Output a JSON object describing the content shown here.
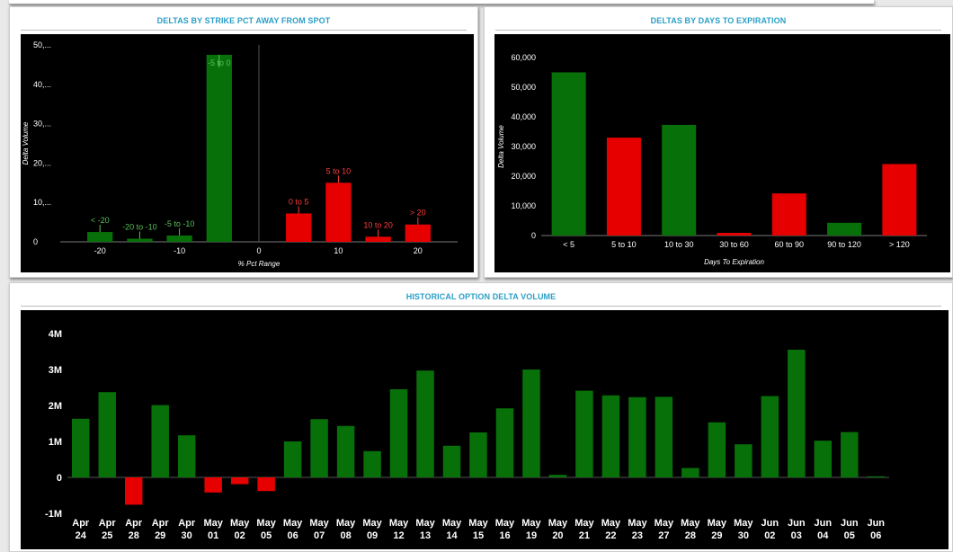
{
  "panels": {
    "strike": {
      "title": "DELTAS BY STRIKE PCT AWAY FROM SPOT"
    },
    "expiration": {
      "title": "DELTAS BY DAYS TO EXPIRATION"
    },
    "history": {
      "title": "HISTORICAL OPTION DELTA VOLUME"
    }
  },
  "colors": {
    "positive": "#087008",
    "negative": "#e60000",
    "background": "#000000",
    "axis_text": "#ffffff",
    "title": "#2b9fc7"
  },
  "chart_data": [
    {
      "id": "strike",
      "type": "bar",
      "xlabel": "% Pct Range",
      "ylabel": "Delta Volume",
      "xlim": [
        -25,
        25
      ],
      "ylim": [
        0,
        50000
      ],
      "xticks": [
        {
          "value": -20,
          "label": "-20"
        },
        {
          "value": -10,
          "label": "-10"
        },
        {
          "value": 0,
          "label": "0"
        },
        {
          "value": 10,
          "label": "10"
        },
        {
          "value": 20,
          "label": "20"
        }
      ],
      "yticks": [
        {
          "value": 0,
          "label": "0"
        },
        {
          "value": 10000,
          "label": "10,..."
        },
        {
          "value": 20000,
          "label": "20,..."
        },
        {
          "value": 30000,
          "label": "30,..."
        },
        {
          "value": 40000,
          "label": "40,..."
        },
        {
          "value": 50000,
          "label": "50,..."
        }
      ],
      "bars": [
        {
          "label": "< -20",
          "center": -20,
          "value": 2500,
          "color": "green"
        },
        {
          "label": "-20 to -10",
          "center": -15,
          "value": 800,
          "color": "green"
        },
        {
          "label": "-5 to -10",
          "center": -10,
          "value": 1600,
          "color": "green"
        },
        {
          "label": "-5 to 0",
          "center": -5,
          "value": 47500,
          "color": "green"
        },
        {
          "label": "0 to 5",
          "center": 5,
          "value": 7200,
          "color": "red"
        },
        {
          "label": "5 to 10",
          "center": 10,
          "value": 15000,
          "color": "red"
        },
        {
          "label": "10 to 20",
          "center": 15,
          "value": 1300,
          "color": "red"
        },
        {
          "label": "> 20",
          "center": 20,
          "value": 4400,
          "color": "red"
        }
      ]
    },
    {
      "id": "expiration",
      "type": "bar",
      "xlabel": "Days To Expiration",
      "ylabel": "Delta Volume",
      "ylim": [
        0,
        60000
      ],
      "yticks": [
        {
          "value": 0,
          "label": "0"
        },
        {
          "value": 10000,
          "label": "10,000"
        },
        {
          "value": 20000,
          "label": "20,000"
        },
        {
          "value": 30000,
          "label": "30,000"
        },
        {
          "value": 40000,
          "label": "40,000"
        },
        {
          "value": 50000,
          "label": "50,000"
        },
        {
          "value": 60000,
          "label": "60,000"
        }
      ],
      "categories": [
        "< 5",
        "5 to 10",
        "10 to 30",
        "30 to 60",
        "60 to 90",
        "90 to 120",
        "> 120"
      ],
      "values": [
        55000,
        33000,
        37300,
        900,
        14200,
        4300,
        24100
      ],
      "bar_colors": [
        "green",
        "red",
        "green",
        "red",
        "red",
        "green",
        "red"
      ]
    },
    {
      "id": "history",
      "type": "bar",
      "xlabel": "",
      "ylabel": "",
      "ylim": [
        -1000000,
        4000000
      ],
      "yticks": [
        {
          "value": -1000000,
          "label": "-1M"
        },
        {
          "value": 0,
          "label": "0"
        },
        {
          "value": 1000000,
          "label": "1M"
        },
        {
          "value": 2000000,
          "label": "2M"
        },
        {
          "value": 3000000,
          "label": "3M"
        },
        {
          "value": 4000000,
          "label": "4M"
        }
      ],
      "categories": [
        {
          "month": "Apr",
          "day": "24"
        },
        {
          "month": "Apr",
          "day": "25"
        },
        {
          "month": "Apr",
          "day": "28"
        },
        {
          "month": "Apr",
          "day": "29"
        },
        {
          "month": "Apr",
          "day": "30"
        },
        {
          "month": "May",
          "day": "01"
        },
        {
          "month": "May",
          "day": "02"
        },
        {
          "month": "May",
          "day": "05"
        },
        {
          "month": "May",
          "day": "06"
        },
        {
          "month": "May",
          "day": "07"
        },
        {
          "month": "May",
          "day": "08"
        },
        {
          "month": "May",
          "day": "09"
        },
        {
          "month": "May",
          "day": "12"
        },
        {
          "month": "May",
          "day": "13"
        },
        {
          "month": "May",
          "day": "14"
        },
        {
          "month": "May",
          "day": "15"
        },
        {
          "month": "May",
          "day": "16"
        },
        {
          "month": "May",
          "day": "19"
        },
        {
          "month": "May",
          "day": "20"
        },
        {
          "month": "May",
          "day": "21"
        },
        {
          "month": "May",
          "day": "22"
        },
        {
          "month": "May",
          "day": "23"
        },
        {
          "month": "May",
          "day": "27"
        },
        {
          "month": "May",
          "day": "28"
        },
        {
          "month": "May",
          "day": "29"
        },
        {
          "month": "May",
          "day": "30"
        },
        {
          "month": "Jun",
          "day": "02"
        },
        {
          "month": "Jun",
          "day": "03"
        },
        {
          "month": "Jun",
          "day": "04"
        },
        {
          "month": "Jun",
          "day": "05"
        },
        {
          "month": "Jun",
          "day": "06"
        }
      ],
      "values": [
        1630000,
        2370000,
        -760000,
        2010000,
        1170000,
        -420000,
        -190000,
        -380000,
        1000000,
        1620000,
        1430000,
        730000,
        2450000,
        2970000,
        880000,
        1250000,
        1920000,
        3000000,
        70000,
        2410000,
        2280000,
        2230000,
        2240000,
        260000,
        1530000,
        920000,
        2260000,
        3550000,
        1020000,
        1260000,
        30000
      ]
    }
  ]
}
